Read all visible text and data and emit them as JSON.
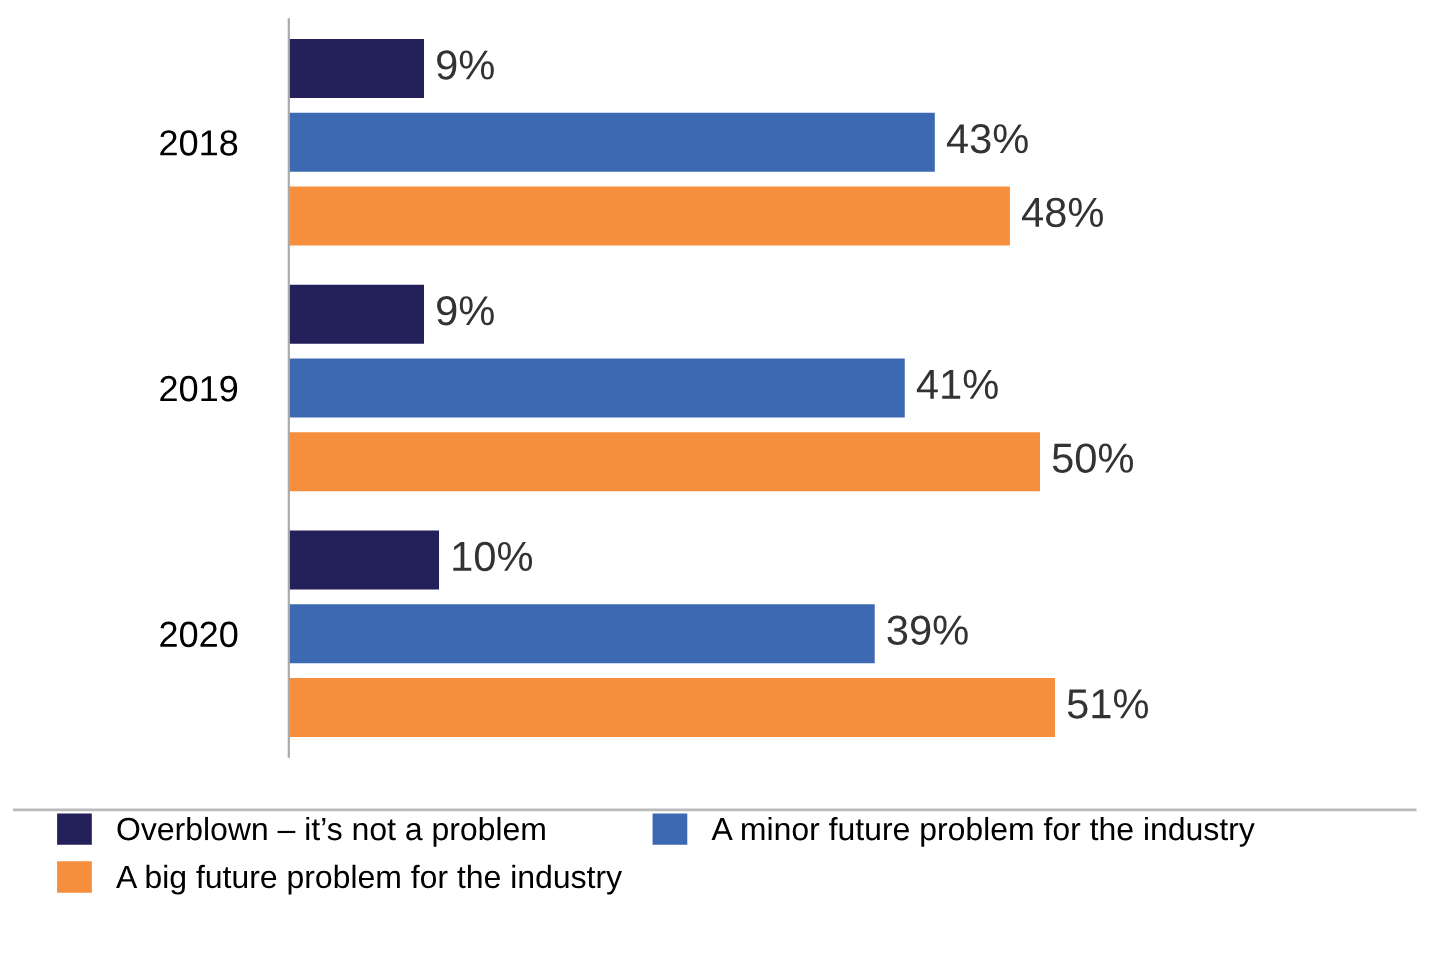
{
  "chart_data": {
    "type": "bar",
    "orientation": "horizontal",
    "categories": [
      "2018",
      "2019",
      "2020"
    ],
    "series": [
      {
        "name": "Overblown – it’s not a problem",
        "color": "#24205a",
        "values": [
          9,
          9,
          10
        ],
        "value_labels": [
          "9%",
          "9%",
          "10%"
        ]
      },
      {
        "name": "A minor future problem for the industry",
        "color": "#3d68b2",
        "values": [
          43,
          41,
          39
        ],
        "value_labels": [
          "43%",
          "41%",
          "39%"
        ]
      },
      {
        "name": "A big future problem for the industry",
        "color": "#f58f3d",
        "values": [
          48,
          50,
          51
        ],
        "value_labels": [
          "48%",
          "50%",
          "51%"
        ]
      }
    ],
    "legend": "bottom",
    "grid": false,
    "tick_labels": "y"
  }
}
